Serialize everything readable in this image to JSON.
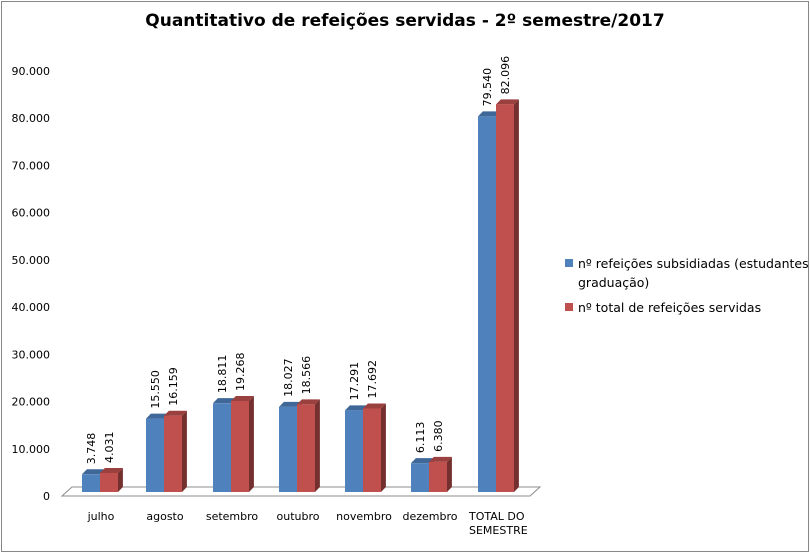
{
  "chart_data": {
    "type": "bar",
    "title": "Quantitativo de refeições servidas - 2º semestre/2017",
    "categories": [
      "julho",
      "agosto",
      "setembro",
      "outubro",
      "novembro",
      "dezembro",
      "TOTAL DO SEMESTRE"
    ],
    "series": [
      {
        "name": "nº refeições subsidiadas (estudantes graduação)",
        "color": "#4F81BD",
        "values": [
          3748,
          15550,
          18811,
          18027,
          17291,
          6113,
          79540
        ],
        "labels": [
          "3.748",
          "15.550",
          "18.811",
          "18.027",
          "17.291",
          "6.113",
          "79.540"
        ]
      },
      {
        "name": "nº total de refeições servidas",
        "color": "#C0504D",
        "values": [
          4031,
          16159,
          19268,
          18566,
          17692,
          6380,
          82096
        ],
        "labels": [
          "4.031",
          "16.159",
          "19.268",
          "18.566",
          "17.692",
          "6.380",
          "82.096"
        ]
      }
    ],
    "ylim": [
      0,
      90000
    ],
    "yticks": [
      0,
      10000,
      20000,
      30000,
      40000,
      50000,
      60000,
      70000,
      80000,
      90000
    ],
    "ytick_labels": [
      "0",
      "10.000",
      "20.000",
      "30.000",
      "40.000",
      "50.000",
      "60.000",
      "70.000",
      "80.000",
      "90.000"
    ],
    "grid": false,
    "legend_position": "right",
    "style": "3d-clustered-column"
  }
}
